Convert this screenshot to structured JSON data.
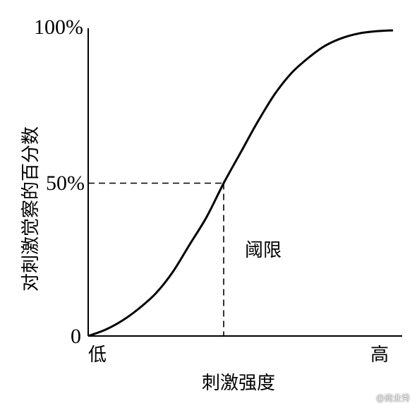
{
  "chart_data": {
    "type": "line",
    "title": "",
    "xlabel": "刺激强度",
    "ylabel": "对刺激觉察的百分数",
    "x_tick_labels": [
      "低",
      "高"
    ],
    "y_tick_labels": [
      "0",
      "50%",
      "100%"
    ],
    "xlim": [
      0,
      100
    ],
    "ylim": [
      0,
      100
    ],
    "grid": false,
    "series": [
      {
        "x": [
          5,
          10,
          15,
          20,
          25,
          30,
          35,
          40,
          45,
          50,
          55,
          60,
          65,
          70,
          75,
          80,
          85,
          90,
          95
        ],
        "values": [
          0,
          2,
          5,
          9,
          14,
          21,
          30,
          39,
          50,
          60,
          70,
          79,
          86,
          91,
          95,
          97.5,
          99,
          99.7,
          100
        ]
      }
    ],
    "threshold": {
      "x": 45,
      "y": 50,
      "label": "阈限"
    }
  },
  "watermark": "@商业秀"
}
